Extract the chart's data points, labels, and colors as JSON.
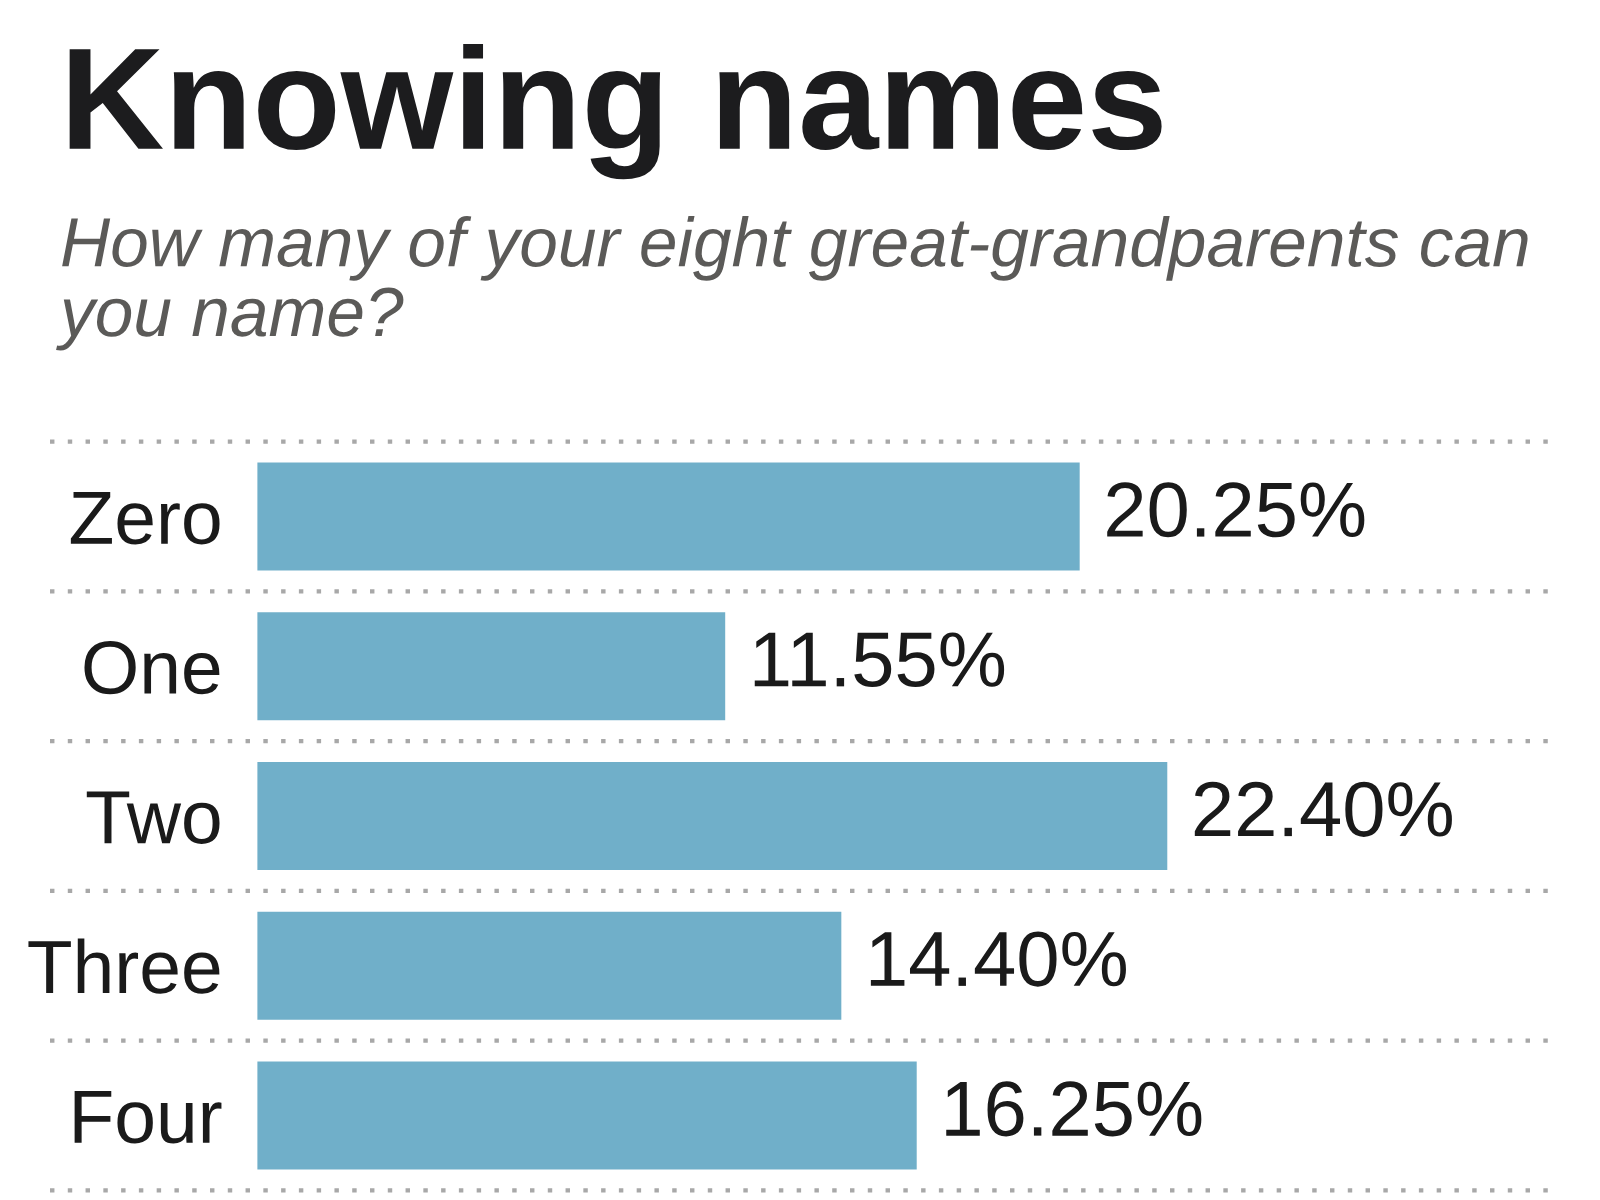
{
  "chart_data": {
    "type": "bar",
    "orientation": "horizontal",
    "title": "Knowing names",
    "subtitle": "How many of your eight great-grandparents can you name?",
    "categories": [
      "Zero",
      "One",
      "Two",
      "Three",
      "Four"
    ],
    "values": [
      20.25,
      11.55,
      22.4,
      14.4,
      16.25
    ],
    "value_labels": [
      "20.25%",
      "11.55%",
      "22.40%",
      "14.40%",
      "16.25%"
    ],
    "color": "#70afc9",
    "grid": "y",
    "tick_labels": "y"
  }
}
